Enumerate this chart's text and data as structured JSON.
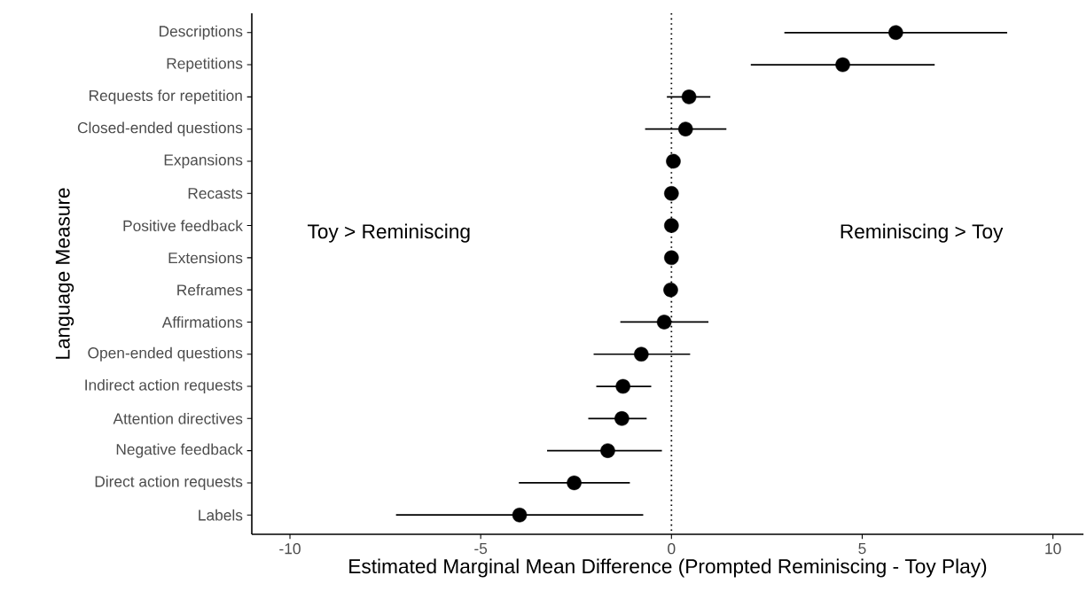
{
  "chart_data": {
    "type": "scatter",
    "orientation": "horizontal",
    "xlabel": "Estimated Marginal Mean Difference (Prompted Reminiscing - Toy Play)",
    "ylabel": "Language Measure",
    "categories": [
      "Descriptions",
      "Repetitions",
      "Requests for repetition",
      "Closed-ended questions",
      "Expansions",
      "Recasts",
      "Positive feedback",
      "Extensions",
      "Reframes",
      "Affirmations",
      "Open-ended questions",
      "Indirect action requests",
      "Attention directives",
      "Negative feedback",
      "Direct action requests",
      "Labels"
    ],
    "values": [
      5.88,
      4.49,
      0.46,
      0.37,
      0.05,
      0.0,
      0.0,
      0.0,
      -0.02,
      -0.19,
      -0.79,
      -1.27,
      -1.3,
      -1.67,
      -2.55,
      -3.98
    ],
    "errors": [
      [
        2.96,
        8.8
      ],
      [
        2.08,
        6.9
      ],
      [
        -0.12,
        1.02
      ],
      [
        -0.69,
        1.44
      ],
      null,
      null,
      null,
      null,
      null,
      [
        -1.34,
        0.97
      ],
      [
        -2.04,
        0.49
      ],
      [
        -1.97,
        -0.53
      ],
      [
        -2.18,
        -0.65
      ],
      [
        -3.26,
        -0.25
      ],
      [
        -4.0,
        -1.09
      ],
      [
        -7.22,
        -0.74
      ]
    ],
    "color": "#000000",
    "xlim": [
      -11,
      10.8
    ],
    "xticks": [
      -10,
      -5,
      0,
      5,
      10
    ],
    "ref_lines": [
      {
        "axis": "x",
        "value": 0,
        "line_style": "dotted"
      }
    ],
    "annotations": [
      "Toy > Reminiscing",
      "Reminiscing > Toy"
    ],
    "grid": false
  }
}
